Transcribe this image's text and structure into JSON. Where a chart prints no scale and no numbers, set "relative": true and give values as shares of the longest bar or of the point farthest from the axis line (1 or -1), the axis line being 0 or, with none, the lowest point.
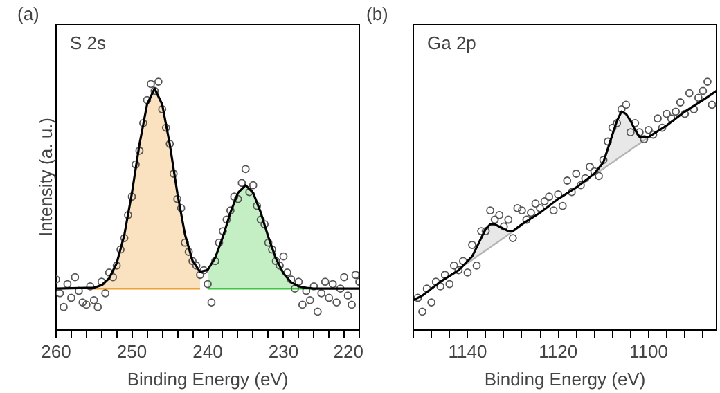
{
  "chart_data": [
    {
      "type": "scatter",
      "relative": true,
      "xlabel": "Binding Energy (eV)",
      "ylabel": "Intensity (a. u.)",
      "annotations": [
        "(a)",
        "S 2s"
      ],
      "xlim": [
        260,
        220
      ],
      "xticks": [
        260,
        250,
        240,
        230,
        220
      ],
      "series": [
        {
          "type": "line",
          "color": "#f0a030",
          "x": [
            256,
            255,
            254,
            253,
            252,
            251,
            250,
            249,
            248,
            247,
            246,
            245,
            244,
            243,
            242,
            241
          ],
          "values": [
            0.1,
            0.1,
            0.1,
            0.1,
            0.1,
            0.1,
            0.1,
            0.1,
            0.1,
            0.1,
            0.1,
            0.1,
            0.1,
            0.1,
            0.1,
            0.1
          ],
          "upper": [
            0.104,
            0.104,
            0.115,
            0.145,
            0.211,
            0.333,
            0.515,
            0.728,
            0.901,
            0.97,
            0.901,
            0.728,
            0.515,
            0.333,
            0.211,
            0.145
          ],
          "lower": [
            0.1,
            0.1,
            0.1,
            0.1,
            0.1,
            0.1,
            0.1,
            0.1,
            0.1,
            0.1,
            0.1,
            0.1,
            0.1,
            0.1,
            0.1,
            0.1
          ]
        },
        {
          "type": "line",
          "color": "#3cc83c",
          "x": [
            240,
            239,
            238,
            237,
            236,
            235,
            234,
            233,
            232,
            231,
            230,
            229,
            228,
            227,
            226
          ],
          "values": [
            0.1,
            0.1,
            0.1,
            0.1,
            0.1,
            0.1,
            0.1,
            0.1,
            0.1,
            0.1,
            0.1,
            0.1,
            0.1,
            0.1,
            0.1
          ],
          "upper": [
            0.166,
            0.231,
            0.325,
            0.431,
            0.517,
            0.55,
            0.517,
            0.431,
            0.325,
            0.231,
            0.166,
            0.128,
            0.11,
            0.103,
            0.1
          ],
          "lower": [
            0.1,
            0.1,
            0.1,
            0.1,
            0.1,
            0.1,
            0.1,
            0.1,
            0.1,
            0.1,
            0.1,
            0.1,
            0.1,
            0.1,
            0.1
          ]
        },
        {
          "marker": "circle",
          "color": "#555555",
          "x": [
            260,
            259.5,
            259,
            258.5,
            258,
            257.5,
            257,
            256.5,
            256,
            255.5,
            255,
            254.5,
            254,
            253.5,
            253,
            252.5,
            252,
            251.5,
            251,
            250.5,
            250,
            249.5,
            249,
            248.5,
            248,
            247.5,
            247,
            246.5,
            246,
            245.5,
            245,
            244.5,
            244,
            243.5,
            243,
            242.5,
            242,
            241.5,
            241,
            240.5,
            240,
            239.5,
            239,
            238.5,
            238,
            237.5,
            237,
            236.5,
            236,
            235.5,
            235,
            234.5,
            234,
            233.5,
            233,
            232.5,
            232,
            231.5,
            231,
            230.5,
            230,
            229.5,
            229,
            228.5,
            228,
            227.5,
            227,
            226.5,
            226,
            225.5,
            225,
            224.5,
            224,
            223.5,
            223,
            222.5,
            222,
            221.5,
            221,
            220.5,
            220
          ],
          "values": [
            0.14,
            0.08,
            0.02,
            0.12,
            0.06,
            0.15,
            0.09,
            0.04,
            0.03,
            0.11,
            0.05,
            0.02,
            0.13,
            0.08,
            0.17,
            0.15,
            0.2,
            0.27,
            0.32,
            0.42,
            0.5,
            0.64,
            0.7,
            0.82,
            0.92,
            0.99,
            0.96,
            1.0,
            0.88,
            0.8,
            0.73,
            0.6,
            0.49,
            0.45,
            0.3,
            0.26,
            0.22,
            0.2,
            0.16,
            0.18,
            0.12,
            0.04,
            0.22,
            0.3,
            0.35,
            0.4,
            0.44,
            0.5,
            0.49,
            0.56,
            0.62,
            0.52,
            0.55,
            0.46,
            0.4,
            0.38,
            0.3,
            0.27,
            0.22,
            0.2,
            0.24,
            0.17,
            0.14,
            0.1,
            0.13,
            0.03,
            0.09,
            0.05,
            0.11,
            0.0,
            0.08,
            0.13,
            0.06,
            0.12,
            0.04,
            0.1,
            0.15,
            0.07,
            0.03,
            0.16,
            0.13
          ]
        },
        {
          "type": "line",
          "color": "#000000",
          "x": [
            260,
            255,
            254,
            253,
            252,
            251,
            250,
            249,
            248,
            247,
            246,
            245,
            244,
            243,
            242,
            241,
            240,
            239,
            238,
            237,
            236,
            235,
            234,
            233,
            232,
            231,
            230,
            229,
            228,
            227,
            226,
            220
          ],
          "values": [
            0.1,
            0.104,
            0.115,
            0.145,
            0.211,
            0.333,
            0.515,
            0.728,
            0.901,
            0.97,
            0.901,
            0.728,
            0.515,
            0.336,
            0.221,
            0.173,
            0.181,
            0.235,
            0.325,
            0.431,
            0.517,
            0.55,
            0.517,
            0.431,
            0.325,
            0.231,
            0.166,
            0.128,
            0.11,
            0.103,
            0.1,
            0.1
          ]
        }
      ]
    },
    {
      "type": "scatter",
      "relative": true,
      "xlabel": "Binding Energy (eV)",
      "annotations": [
        "(b)",
        "Ga 2p"
      ],
      "xlim": [
        1152,
        1085
      ],
      "xticks": [
        1140,
        1120,
        1100
      ],
      "series": [
        {
          "type": "line",
          "color": "#b4b4b4",
          "x": [
            1141,
            1140,
            1139,
            1138,
            1137,
            1136,
            1135,
            1134,
            1133,
            1132,
            1131,
            1130,
            1129,
            1128
          ],
          "values": [
            0.198,
            0.212,
            0.225,
            0.239,
            0.253,
            0.266,
            0.28,
            0.294,
            0.307,
            0.321,
            0.335,
            0.348,
            0.362,
            0.376
          ],
          "upper": [
            0.198,
            0.218,
            0.242,
            0.276,
            0.317,
            0.356,
            0.38,
            0.384,
            0.371,
            0.358,
            0.352,
            0.354,
            0.362,
            0.376
          ],
          "lower": [
            0.198,
            0.212,
            0.225,
            0.239,
            0.253,
            0.266,
            0.28,
            0.294,
            0.307,
            0.321,
            0.335,
            0.348,
            0.362,
            0.376
          ]
        },
        {
          "type": "line",
          "color": "#b4b4b4",
          "x": [
            1112,
            1111,
            1110,
            1109,
            1108,
            1107,
            1106,
            1105,
            1104,
            1103,
            1102,
            1101,
            1100
          ],
          "values": [
            0.595,
            0.609,
            0.622,
            0.636,
            0.649,
            0.663,
            0.677,
            0.69,
            0.704,
            0.718,
            0.731,
            0.745,
            0.759
          ],
          "upper": [
            0.609,
            0.634,
            0.654,
            0.706,
            0.771,
            0.833,
            0.867,
            0.86,
            0.826,
            0.788,
            0.763,
            0.757,
            0.762
          ],
          "lower": [
            0.595,
            0.609,
            0.622,
            0.636,
            0.649,
            0.663,
            0.677,
            0.69,
            0.704,
            0.718,
            0.731,
            0.745,
            0.759
          ]
        },
        {
          "marker": "circle",
          "color": "#555555",
          "x": [
            1151,
            1150,
            1149,
            1148,
            1147,
            1146,
            1145,
            1144,
            1143,
            1142,
            1141,
            1140,
            1139,
            1138,
            1137,
            1136,
            1135,
            1134,
            1133,
            1132,
            1131,
            1130,
            1129,
            1128,
            1127,
            1126,
            1125,
            1124,
            1123,
            1122,
            1121,
            1120,
            1119,
            1118,
            1117,
            1116,
            1115,
            1114,
            1113,
            1112,
            1111,
            1110,
            1109,
            1108,
            1107,
            1106,
            1105,
            1104,
            1103,
            1102,
            1101,
            1100,
            1099,
            1098,
            1097,
            1096,
            1095,
            1094,
            1093,
            1092,
            1091,
            1090,
            1089,
            1088,
            1087,
            1086
          ],
          "values": [
            0.06,
            0.0,
            0.1,
            0.04,
            0.13,
            0.11,
            0.16,
            0.12,
            0.2,
            0.18,
            0.22,
            0.17,
            0.29,
            0.2,
            0.35,
            0.35,
            0.44,
            0.4,
            0.42,
            0.37,
            0.4,
            0.32,
            0.45,
            0.44,
            0.4,
            0.43,
            0.47,
            0.45,
            0.48,
            0.5,
            0.44,
            0.51,
            0.46,
            0.57,
            0.52,
            0.6,
            0.55,
            0.58,
            0.63,
            0.61,
            0.59,
            0.66,
            0.74,
            0.8,
            0.82,
            0.88,
            0.9,
            0.78,
            0.82,
            0.78,
            0.75,
            0.79,
            0.77,
            0.84,
            0.8,
            0.86,
            0.84,
            0.87,
            0.91,
            0.86,
            0.95,
            0.88,
            0.93,
            0.96,
            1.0,
            0.9
          ]
        },
        {
          "type": "line",
          "color": "#000000",
          "x": [
            1152,
            1150,
            1146,
            1142,
            1140,
            1139,
            1138,
            1137,
            1136,
            1135,
            1134,
            1133,
            1132,
            1131,
            1130,
            1128,
            1124,
            1120,
            1116,
            1112,
            1110,
            1109,
            1108,
            1107,
            1106,
            1105,
            1104,
            1103,
            1102,
            1101,
            1100,
            1096,
            1092,
            1088,
            1085
          ],
          "values": [
            0.05,
            0.07,
            0.13,
            0.18,
            0.22,
            0.24,
            0.28,
            0.32,
            0.36,
            0.38,
            0.38,
            0.37,
            0.36,
            0.35,
            0.35,
            0.38,
            0.43,
            0.49,
            0.54,
            0.6,
            0.65,
            0.71,
            0.77,
            0.83,
            0.87,
            0.86,
            0.83,
            0.79,
            0.76,
            0.76,
            0.76,
            0.81,
            0.87,
            0.92,
            0.96
          ]
        }
      ]
    }
  ]
}
